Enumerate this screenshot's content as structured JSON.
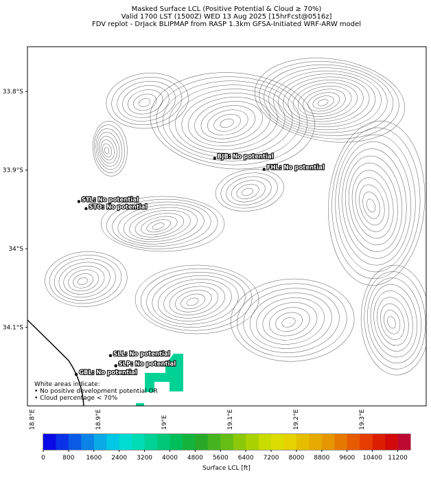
{
  "header": {
    "title_lines": [
      "Masked Surface LCL (Positive Potential & Cloud ≥ 70%)",
      "Valid 1700 LST (1500Z) WED 13 Aug 2025 [15hrFcst@0516z]",
      "FDV replot - DrJack BLIPMAP from RASP 1.3km GFSA-Initiated WRF-ARW model"
    ]
  },
  "map": {
    "lat_range": [
      -33.743,
      -34.2
    ],
    "lon_range": [
      18.793,
      19.398
    ],
    "lat_ticks": [
      {
        "value": -33.8,
        "label": "33.8°S"
      },
      {
        "value": -33.9,
        "label": "33.9°S"
      },
      {
        "value": -34.0,
        "label": "34°S"
      },
      {
        "value": -34.1,
        "label": "34.1°S"
      }
    ],
    "lon_ticks": [
      {
        "value": 18.8,
        "label": "18.8°E"
      },
      {
        "value": 18.9,
        "label": "18.9°E"
      },
      {
        "value": 19.0,
        "label": "19°E"
      },
      {
        "value": 19.1,
        "label": "19.1°E"
      },
      {
        "value": 19.2,
        "label": "19.2°E"
      },
      {
        "value": 19.3,
        "label": "19.3°E"
      }
    ],
    "sites": [
      {
        "label": "BJB: No potential",
        "lon": 19.077,
        "lat": -33.885
      },
      {
        "label": "FHL: No potential",
        "lon": 19.152,
        "lat": -33.899
      },
      {
        "label": "STL: No potential",
        "lon": 18.871,
        "lat": -33.94
      },
      {
        "label": "STO: No potential",
        "lon": 18.882,
        "lat": -33.949
      },
      {
        "label": "SLL: No potential",
        "lon": 18.919,
        "lat": -34.136
      },
      {
        "label": "SLP: No potential",
        "lon": 18.927,
        "lat": -34.149
      },
      {
        "label": "GBL: No potential",
        "lon": 18.867,
        "lat": -34.16
      }
    ],
    "note": [
      "White areas indicate:",
      "• No positive development potential OR",
      "• Cloud percentage < 70%"
    ]
  },
  "colorbar": {
    "label": "Surface LCL [ft]",
    "range": [
      0,
      11600
    ],
    "ticks": [
      0,
      800,
      1600,
      2400,
      3200,
      4000,
      4800,
      5600,
      6400,
      7200,
      8000,
      8800,
      9600,
      10400,
      11200
    ],
    "colors": [
      "#0a0ae6",
      "#0a32e6",
      "#0a5ae6",
      "#0a82e6",
      "#0aaae6",
      "#00c8e6",
      "#00dcd2",
      "#00dcb4",
      "#00d296",
      "#00c878",
      "#00be5a",
      "#14b43c",
      "#28aa28",
      "#46b41e",
      "#64be14",
      "#8cc80a",
      "#aad200",
      "#c8dc00",
      "#dcdc00",
      "#e6d200",
      "#e6be00",
      "#e6aa00",
      "#e69600",
      "#e67800",
      "#e65a00",
      "#e63c00",
      "#dc1e00",
      "#d20a0a",
      "#be0a32"
    ]
  }
}
